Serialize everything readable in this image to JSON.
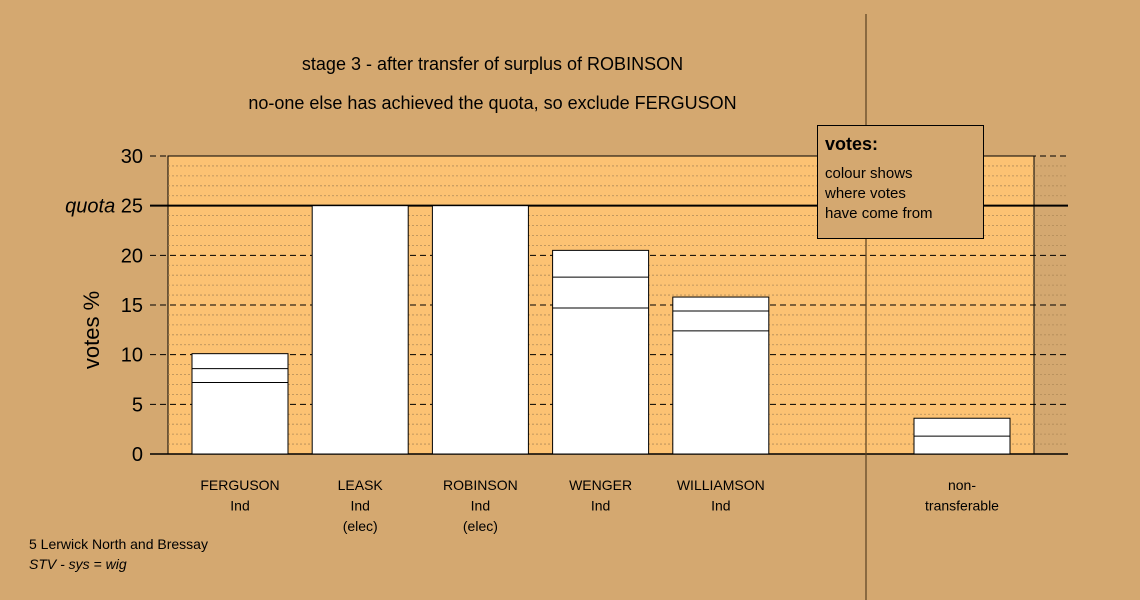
{
  "header": {
    "title": "stage 3 - after transfer of surplus of ROBINSON",
    "subtitle": "no-one else has achieved the quota, so exclude FERGUSON"
  },
  "legend": {
    "title": "votes:",
    "lines": [
      "colour shows",
      "where votes",
      "have come from"
    ]
  },
  "footer": {
    "line1": "5 Lerwick North and Bressay",
    "line2": "STV - sys = wig"
  },
  "colors": {
    "background": "#d4a870",
    "plot_area": "#fcc273",
    "bar_fill": "#ffffff",
    "line": "#000000"
  },
  "chart_data": {
    "type": "bar",
    "ylabel": "votes %",
    "ylim": [
      0,
      30
    ],
    "yticks": [
      0,
      5,
      10,
      15,
      20,
      25,
      30
    ],
    "quota": {
      "value": 25,
      "label": "quota"
    },
    "bars": [
      {
        "name": "FERGUSON",
        "sublabels": [
          "Ind"
        ],
        "segments": [
          7.2,
          1.4,
          1.5
        ],
        "total": 10.1
      },
      {
        "name": "LEASK",
        "sublabels": [
          "Ind",
          "(elec)"
        ],
        "segments": [
          25
        ],
        "total": 25
      },
      {
        "name": "ROBINSON",
        "sublabels": [
          "Ind",
          "(elec)"
        ],
        "segments": [
          25
        ],
        "total": 25
      },
      {
        "name": "WENGER",
        "sublabels": [
          "Ind"
        ],
        "segments": [
          14.7,
          3.1,
          2.7
        ],
        "total": 20.5
      },
      {
        "name": "WILLIAMSON",
        "sublabels": [
          "Ind"
        ],
        "segments": [
          12.4,
          2.0,
          1.4
        ],
        "total": 15.8
      }
    ],
    "nontransferable": {
      "name": "non-",
      "sublabels": [
        "transferable"
      ],
      "segments": [
        1.8,
        1.8
      ],
      "total": 3.6
    }
  }
}
